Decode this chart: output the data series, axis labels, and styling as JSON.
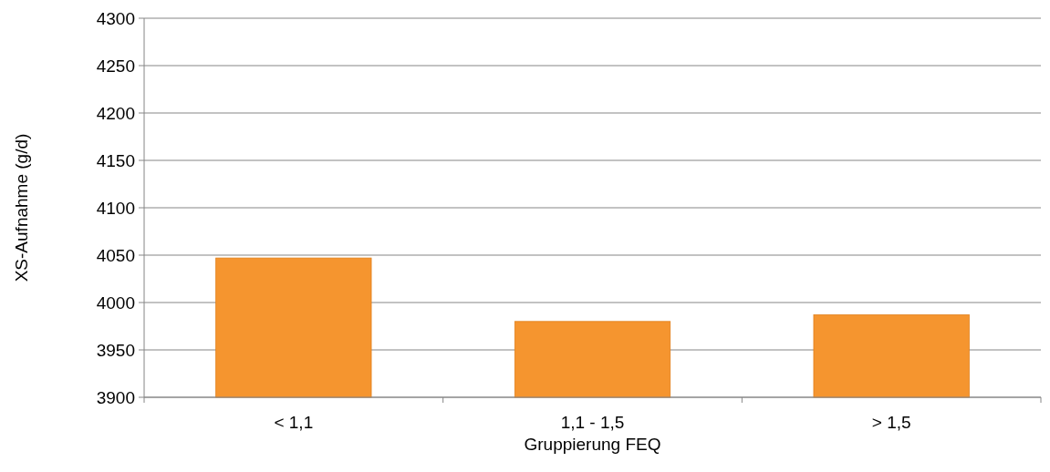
{
  "chart_data": {
    "type": "bar",
    "xlabel": "Gruppierung FEQ",
    "ylabel": "XS-Aufnahme (g/d)",
    "categories": [
      "< 1,1",
      "1,1 - 1,5",
      "> 1,5"
    ],
    "values": [
      4047,
      3980,
      3987
    ],
    "color": "#f5952f",
    "ylim": [
      3900,
      4300
    ],
    "yticks": [
      3900,
      3950,
      4000,
      4050,
      4100,
      4150,
      4200,
      4250,
      4300
    ],
    "grid": "y"
  }
}
